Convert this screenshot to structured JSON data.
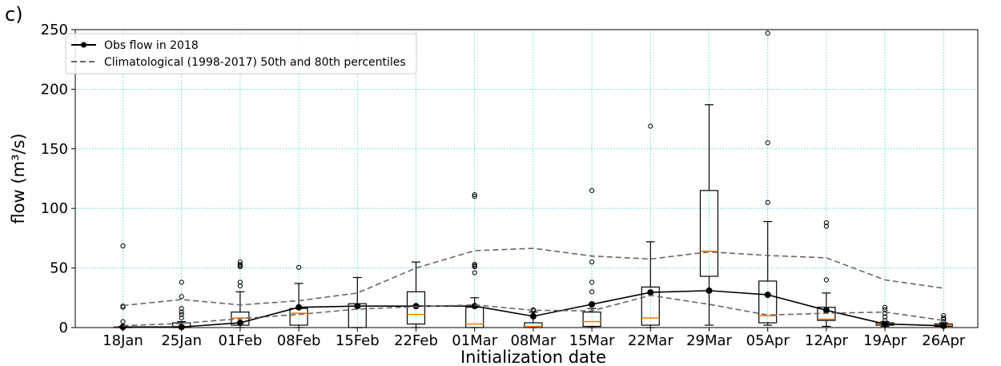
{
  "panel_label": "c)",
  "chart_data": {
    "type": "box",
    "xlabel": "Initialization date",
    "ylabel": "flow (m³/s)",
    "ylim": [
      0,
      250
    ],
    "yticks": [
      0,
      50,
      100,
      150,
      200,
      250
    ],
    "grid": true,
    "legend_position": "top-left",
    "categories": [
      "18Jan",
      "25Jan",
      "01Feb",
      "08Feb",
      "15Feb",
      "22Feb",
      "01Mar",
      "08Mar",
      "15Mar",
      "22Mar",
      "29Mar",
      "05Apr",
      "12Apr",
      "19Apr",
      "26Apr"
    ],
    "boxes": [
      {
        "whislo": 0,
        "q1": 0,
        "med": 0,
        "q3": 0.5,
        "whishi": 1,
        "fliers": [
          5,
          17,
          18,
          68.5
        ]
      },
      {
        "whislo": 0,
        "q1": 0,
        "med": 1,
        "q3": 4,
        "whishi": 5,
        "fliers": [
          8,
          11,
          13,
          16,
          26,
          38
        ]
      },
      {
        "whislo": 0,
        "q1": 2,
        "med": 8,
        "q3": 13,
        "whishi": 30,
        "fliers": [
          35,
          38,
          51,
          52,
          53,
          55
        ]
      },
      {
        "whislo": 0,
        "q1": 2,
        "med": 12,
        "q3": 16,
        "whishi": 37,
        "fliers": [
          50.5
        ]
      },
      {
        "whislo": 0,
        "q1": 0,
        "med": 18,
        "q3": 20,
        "whishi": 42,
        "fliers": []
      },
      {
        "whislo": 0,
        "q1": 3,
        "med": 11,
        "q3": 30,
        "whishi": 55,
        "fliers": []
      },
      {
        "whislo": 0,
        "q1": 0,
        "med": 3,
        "q3": 17,
        "whishi": 25,
        "fliers": [
          46,
          51,
          52,
          53,
          110,
          111.5
        ]
      },
      {
        "whislo": 0,
        "q1": 0,
        "med": 1,
        "q3": 4,
        "whishi": 13,
        "fliers": [
          14,
          15
        ]
      },
      {
        "whislo": 0,
        "q1": 1,
        "med": 5,
        "q3": 13,
        "whishi": 16,
        "fliers": [
          30,
          38,
          55,
          115
        ]
      },
      {
        "whislo": 0,
        "q1": 2,
        "med": 8,
        "q3": 34,
        "whishi": 72,
        "fliers": [
          169
        ]
      },
      {
        "whislo": 2,
        "q1": 43,
        "med": 64,
        "q3": 115,
        "whishi": 187,
        "fliers": []
      },
      {
        "whislo": 2,
        "q1": 4,
        "med": 10,
        "q3": 39,
        "whishi": 89,
        "fliers": [
          105,
          155,
          247
        ]
      },
      {
        "whislo": 1,
        "q1": 6,
        "med": 7,
        "q3": 17,
        "whishi": 29,
        "fliers": [
          40,
          85,
          88
        ]
      },
      {
        "whislo": 1,
        "q1": 2,
        "med": 3,
        "q3": 4,
        "whishi": 5,
        "fliers": [
          6,
          9,
          12,
          15,
          17
        ]
      },
      {
        "whislo": 1,
        "q1": 1,
        "med": 2,
        "q3": 3,
        "whishi": 4,
        "fliers": [
          5,
          7,
          8,
          10
        ]
      }
    ],
    "series": [
      {
        "name": "Obs flow in 2018",
        "style": "solid-marker",
        "color": "#000000",
        "values": [
          0.5,
          0.5,
          4,
          17,
          18,
          18,
          18,
          9.5,
          19.5,
          29.5,
          31,
          27.5,
          14.5,
          3,
          1.5
        ]
      },
      {
        "name": "Climatological (1998-2017) 50th and 80th percentiles",
        "style": "dashed",
        "color": "#666666",
        "values": [
          18.5,
          23.5,
          19,
          22.5,
          29,
          50,
          64.5,
          66.5,
          60,
          57.5,
          63.5,
          60.5,
          58.5,
          40,
          33
        ]
      },
      {
        "name": "",
        "style": "dashed",
        "color": "#666666",
        "values": [
          1.5,
          3.5,
          7.5,
          11,
          15.5,
          17.5,
          19,
          14.5,
          14,
          27,
          19.5,
          10.5,
          12,
          13,
          6
        ]
      }
    ],
    "colors": {
      "median": "#ff7f0e",
      "grid": "#40c8d8",
      "box": "#000000",
      "clim": "#666666"
    }
  }
}
